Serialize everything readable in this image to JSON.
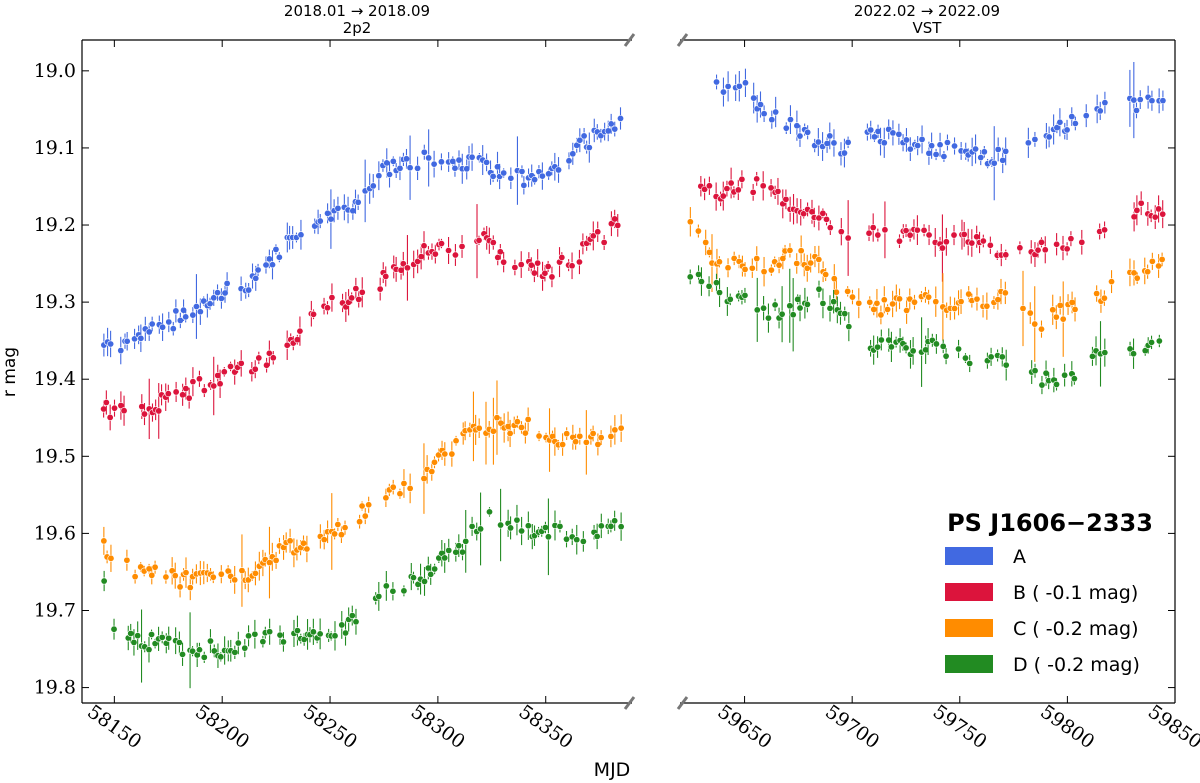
{
  "chart_data": {
    "type": "scatter",
    "title": "",
    "xlabel": "MJD",
    "ylabel": "r mag",
    "ylim": [
      19.82,
      18.96
    ],
    "y_ticks": [
      19.0,
      19.1,
      19.2,
      19.3,
      19.4,
      19.5,
      19.6,
      19.7,
      19.8
    ],
    "y_tick_labels": [
      "19.0",
      "19.1",
      "19.2",
      "19.3",
      "19.4",
      "19.5",
      "19.6",
      "19.7",
      "19.8"
    ],
    "panels": [
      {
        "title_line1": "2018.01 → 2018.09",
        "title_line2": "2p2",
        "xlim": [
          58135,
          58390
        ],
        "x_ticks": [
          58150,
          58200,
          58250,
          58300,
          58350
        ],
        "x_tick_labels": [
          "58150",
          "58200",
          "58250",
          "58300",
          "58350"
        ],
        "anchors": {
          "A": [
            [
              58145,
              19.36
            ],
            [
              58160,
              19.35
            ],
            [
              58180,
              19.32
            ],
            [
              58200,
              19.29
            ],
            [
              58215,
              19.27
            ],
            [
              58230,
              19.22
            ],
            [
              58245,
              19.19
            ],
            [
              58262,
              19.17
            ],
            [
              58275,
              19.13
            ],
            [
              58290,
              19.12
            ],
            [
              58300,
              19.11
            ],
            [
              58310,
              19.12
            ],
            [
              58320,
              19.12
            ],
            [
              58330,
              19.14
            ],
            [
              58345,
              19.14
            ],
            [
              58360,
              19.11
            ],
            [
              58375,
              19.08
            ],
            [
              58385,
              19.06
            ]
          ],
          "B": [
            [
              58145,
              19.44
            ],
            [
              58165,
              19.44
            ],
            [
              58180,
              19.42
            ],
            [
              58200,
              19.4
            ],
            [
              58215,
              19.38
            ],
            [
              58230,
              19.36
            ],
            [
              58245,
              19.31
            ],
            [
              58262,
              19.29
            ],
            [
              58275,
              19.27
            ],
            [
              58290,
              19.24
            ],
            [
              58300,
              19.23
            ],
            [
              58310,
              19.23
            ],
            [
              58322,
              19.22
            ],
            [
              58335,
              19.25
            ],
            [
              58352,
              19.26
            ],
            [
              58365,
              19.24
            ],
            [
              58378,
              19.21
            ],
            [
              58385,
              19.19
            ]
          ],
          "C": [
            [
              58145,
              19.62
            ],
            [
              58160,
              19.65
            ],
            [
              58180,
              19.66
            ],
            [
              58200,
              19.66
            ],
            [
              58215,
              19.65
            ],
            [
              58230,
              19.62
            ],
            [
              58245,
              19.61
            ],
            [
              58262,
              19.58
            ],
            [
              58275,
              19.55
            ],
            [
              58290,
              19.53
            ],
            [
              58300,
              19.5
            ],
            [
              58310,
              19.48
            ],
            [
              58322,
              19.46
            ],
            [
              58340,
              19.46
            ],
            [
              58355,
              19.48
            ],
            [
              58370,
              19.48
            ],
            [
              58385,
              19.46
            ]
          ],
          "D": [
            [
              58145,
              19.66
            ],
            [
              58150,
              19.72
            ],
            [
              58165,
              19.74
            ],
            [
              58185,
              19.75
            ],
            [
              58200,
              19.75
            ],
            [
              58215,
              19.74
            ],
            [
              58235,
              19.73
            ],
            [
              58250,
              19.73
            ],
            [
              58262,
              19.71
            ],
            [
              58275,
              19.67
            ],
            [
              58290,
              19.66
            ],
            [
              58300,
              19.64
            ],
            [
              58310,
              19.62
            ],
            [
              58322,
              19.58
            ],
            [
              58335,
              19.59
            ],
            [
              58355,
              19.6
            ],
            [
              58370,
              19.6
            ],
            [
              58385,
              19.59
            ]
          ]
        }
      },
      {
        "title_line1": "2022.02 → 2022.09",
        "title_line2": "VST",
        "xlim": [
          59620,
          59850
        ],
        "x_ticks": [
          59650,
          59700,
          59750,
          59800,
          59850
        ],
        "x_tick_labels": [
          "59650",
          "59700",
          "59750",
          "59800",
          "59850"
        ],
        "anchors": {
          "A": [
            [
              59637,
              19.02
            ],
            [
              59648,
              19.02
            ],
            [
              59660,
              19.05
            ],
            [
              59670,
              19.07
            ],
            [
              59685,
              19.09
            ],
            [
              59695,
              19.1
            ],
            [
              59710,
              19.08
            ],
            [
              59725,
              19.09
            ],
            [
              59740,
              19.1
            ],
            [
              59755,
              19.11
            ],
            [
              59770,
              19.11
            ],
            [
              59785,
              19.08
            ],
            [
              59800,
              19.07
            ],
            [
              59815,
              19.05
            ],
            [
              59830,
              19.04
            ],
            [
              59845,
              19.05
            ]
          ],
          "B": [
            [
              59630,
              19.16
            ],
            [
              59648,
              19.15
            ],
            [
              59660,
              19.15
            ],
            [
              59670,
              19.18
            ],
            [
              59685,
              19.19
            ],
            [
              59695,
              19.22
            ],
            [
              59710,
              19.21
            ],
            [
              59725,
              19.21
            ],
            [
              59740,
              19.22
            ],
            [
              59755,
              19.22
            ],
            [
              59770,
              19.24
            ],
            [
              59785,
              19.23
            ],
            [
              59800,
              19.22
            ],
            [
              59815,
              19.21
            ],
            [
              59830,
              19.18
            ],
            [
              59845,
              19.19
            ]
          ],
          "C": [
            [
              59625,
              19.2
            ],
            [
              59635,
              19.24
            ],
            [
              59648,
              19.25
            ],
            [
              59660,
              19.25
            ],
            [
              59672,
              19.24
            ],
            [
              59685,
              19.25
            ],
            [
              59695,
              19.29
            ],
            [
              59710,
              19.31
            ],
            [
              59725,
              19.3
            ],
            [
              59740,
              19.3
            ],
            [
              59755,
              19.3
            ],
            [
              59770,
              19.29
            ],
            [
              59785,
              19.33
            ],
            [
              59800,
              19.31
            ],
            [
              59815,
              19.29
            ],
            [
              59830,
              19.27
            ],
            [
              59845,
              19.25
            ]
          ],
          "D": [
            [
              59625,
              19.27
            ],
            [
              59635,
              19.28
            ],
            [
              59648,
              19.3
            ],
            [
              59660,
              19.31
            ],
            [
              59672,
              19.31
            ],
            [
              59685,
              19.29
            ],
            [
              59695,
              19.32
            ],
            [
              59710,
              19.36
            ],
            [
              59725,
              19.36
            ],
            [
              59740,
              19.36
            ],
            [
              59755,
              19.37
            ],
            [
              59770,
              19.38
            ],
            [
              59785,
              19.4
            ],
            [
              59800,
              19.4
            ],
            [
              59815,
              19.37
            ],
            [
              59830,
              19.37
            ],
            [
              59845,
              19.35
            ]
          ]
        }
      }
    ],
    "series": [
      {
        "name": "A",
        "label": "A",
        "color": "#4169e1",
        "offset": 0.0
      },
      {
        "name": "B",
        "label": "B ( -0.1 mag)",
        "color": "#dc143c",
        "offset": -0.1
      },
      {
        "name": "C",
        "label": "C ( -0.2 mag)",
        "color": "#ff8c00",
        "offset": -0.2
      },
      {
        "name": "D",
        "label": "D ( -0.2 mag)",
        "color": "#228b22",
        "offset": -0.2
      }
    ],
    "legend": {
      "title": "PS J1606−2333",
      "placement": "lower-right"
    }
  }
}
